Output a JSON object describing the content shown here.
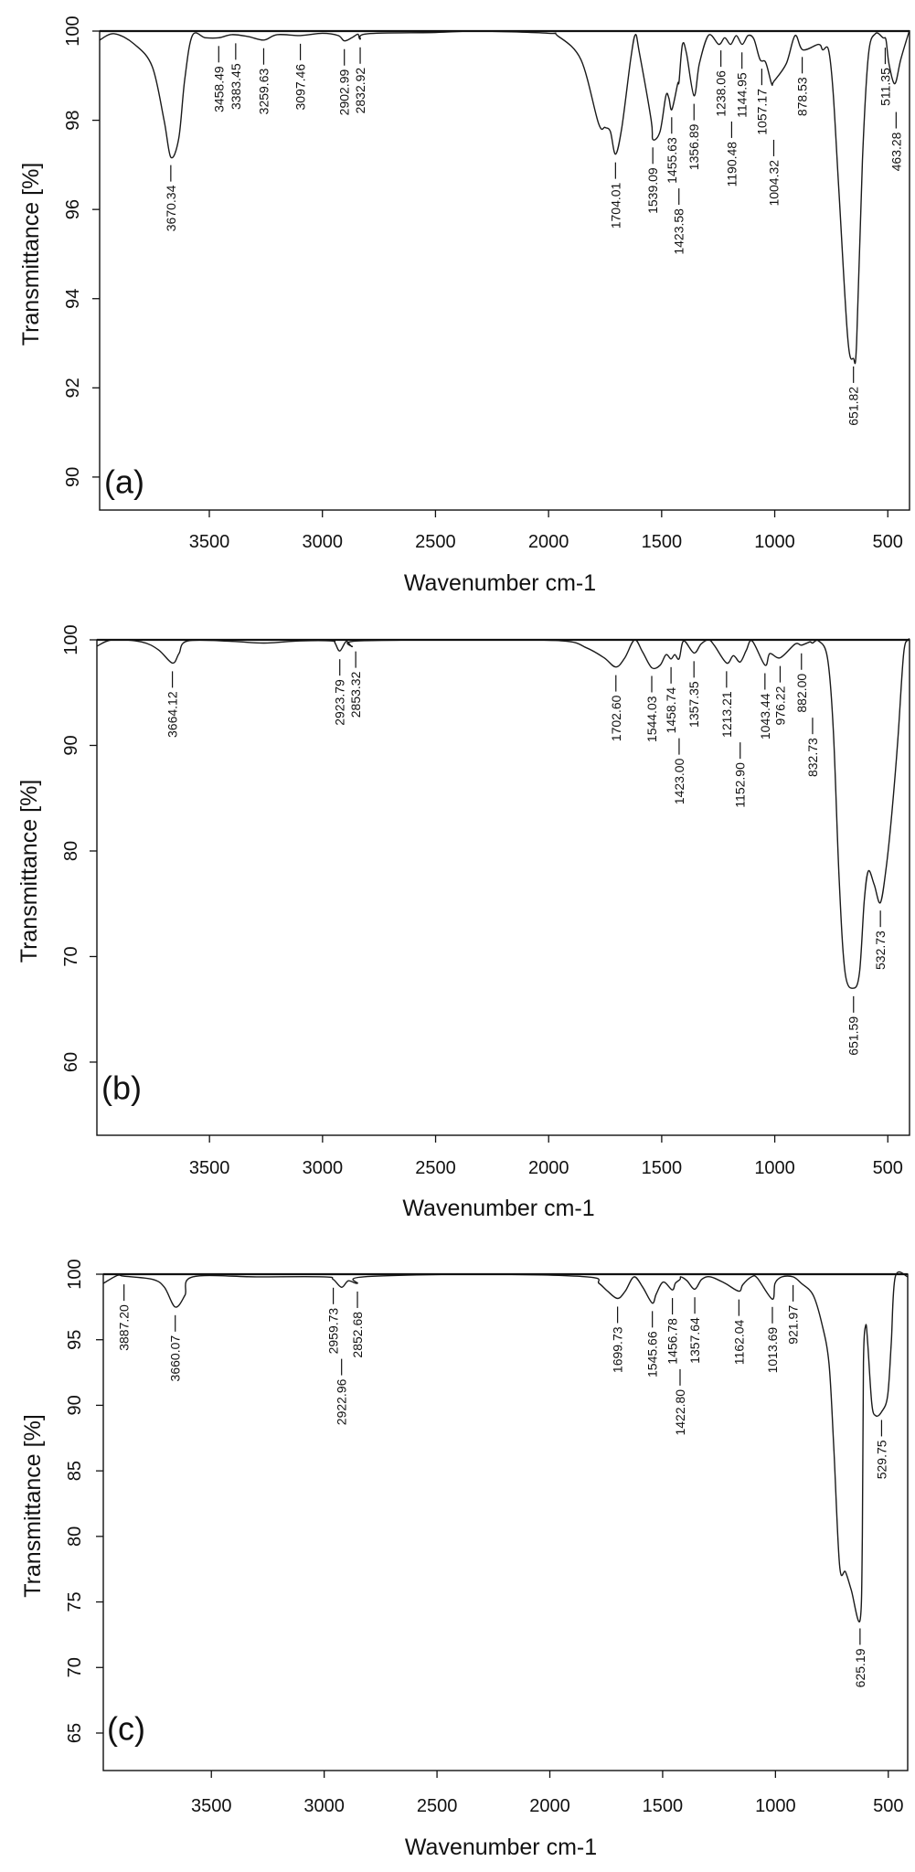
{
  "chart_data": [
    {
      "type": "line",
      "panel_label": "(a)",
      "xlabel": "Wavenumber cm-1",
      "ylabel": "Transmittance [%]",
      "xlim": [
        3985,
        404
      ],
      "ylim": [
        89.26,
        100
      ],
      "xticks": [
        3500,
        3000,
        2500,
        2000,
        1500,
        1000,
        500
      ],
      "yticks": [
        90,
        92,
        94,
        96,
        98,
        100
      ],
      "line_color": "#1a1a1a",
      "series": [
        {
          "points": [
            [
              3985,
              99.8
            ],
            [
              3920,
              99.94
            ],
            [
              3830,
              99.7
            ],
            [
              3752,
              99.2
            ],
            [
              3700,
              98.0
            ],
            [
              3670,
              97.17
            ],
            [
              3635,
              97.6
            ],
            [
              3609,
              98.9
            ],
            [
              3575,
              99.9
            ],
            [
              3518,
              99.85
            ],
            [
              3458,
              99.85
            ],
            [
              3400,
              99.92
            ],
            [
              3330,
              99.88
            ],
            [
              3259,
              99.8
            ],
            [
              3200,
              99.92
            ],
            [
              3097,
              99.9
            ],
            [
              3000,
              99.95
            ],
            [
              2930,
              99.9
            ],
            [
              2903,
              99.78
            ],
            [
              2870,
              99.85
            ],
            [
              2843,
              99.93
            ],
            [
              2833,
              99.82
            ],
            [
              2800,
              99.94
            ],
            [
              2500,
              99.97
            ],
            [
              2300,
              100
            ],
            [
              2000,
              99.95
            ],
            [
              1961,
              99.9
            ],
            [
              1857,
              99.36
            ],
            [
              1779,
              97.93
            ],
            [
              1750,
              97.84
            ],
            [
              1727,
              97.75
            ],
            [
              1704,
              97.24
            ],
            [
              1676,
              97.84
            ],
            [
              1637,
              99.36
            ],
            [
              1616,
              99.92
            ],
            [
              1598,
              99.5
            ],
            [
              1546,
              98.0
            ],
            [
              1539,
              97.57
            ],
            [
              1507,
              97.75
            ],
            [
              1481,
              98.55
            ],
            [
              1468,
              98.5
            ],
            [
              1455,
              98.24
            ],
            [
              1429,
              98.82
            ],
            [
              1423,
              98.87
            ],
            [
              1408,
              99.7
            ],
            [
              1390,
              99.5
            ],
            [
              1357,
              98.55
            ],
            [
              1333,
              99.27
            ],
            [
              1292,
              99.91
            ],
            [
              1247,
              99.7
            ],
            [
              1221,
              99.85
            ],
            [
              1195,
              99.7
            ],
            [
              1170,
              99.9
            ],
            [
              1144,
              99.7
            ],
            [
              1118,
              99.9
            ],
            [
              1092,
              99.82
            ],
            [
              1065,
              99.36
            ],
            [
              1040,
              99.3
            ],
            [
              1014,
              98.82
            ],
            [
              1004,
              98.87
            ],
            [
              949,
              99.27
            ],
            [
              910,
              99.9
            ],
            [
              876,
              99.58
            ],
            [
              806,
              99.7
            ],
            [
              788,
              99.58
            ],
            [
              762,
              99.58
            ],
            [
              742,
              98.64
            ],
            [
              716,
              96.4
            ],
            [
              677,
              93.1
            ],
            [
              652,
              92.66
            ],
            [
              638,
              93.0
            ],
            [
              612,
              97.1
            ],
            [
              586,
              99.45
            ],
            [
              555,
              99.94
            ],
            [
              521,
              99.85
            ],
            [
              508,
              99.8
            ],
            [
              495,
              99.27
            ],
            [
              469,
              98.82
            ],
            [
              443,
              99.36
            ],
            [
              409,
              99.94
            ],
            [
              404,
              100
            ]
          ]
        }
      ],
      "peaks": [
        "3670.34",
        "3458.49",
        "3383.45",
        "3259.63",
        "3097.46",
        "2902.99",
        "2832.92",
        "1704.01",
        "1539.09",
        "1455.63",
        "1423.58",
        "1356.89",
        "1238.06",
        "1190.48",
        "1144.95",
        "1057.17",
        "1004.32",
        "878.53",
        "651.82",
        "511.35",
        "463.28"
      ]
    },
    {
      "type": "line",
      "panel_label": "(b)",
      "xlabel": "Wavenumber cm-1",
      "ylabel": "Transmittance [%]",
      "xlim": [
        3998,
        404
      ],
      "ylim": [
        53.07,
        100
      ],
      "xticks": [
        3500,
        3000,
        2500,
        2000,
        1500,
        1000,
        500
      ],
      "yticks": [
        60,
        70,
        80,
        90,
        100
      ],
      "line_color": "#1a1a1a",
      "series": [
        {
          "points": [
            [
              3998,
              99.4
            ],
            [
              3930,
              100
            ],
            [
              3800,
              99.8
            ],
            [
              3726,
              99.06
            ],
            [
              3664,
              97.8
            ],
            [
              3635,
              98.7
            ],
            [
              3596,
              99.9
            ],
            [
              3400,
              99.85
            ],
            [
              3258,
              99.7
            ],
            [
              3100,
              99.9
            ],
            [
              2960,
              99.9
            ],
            [
              2945,
              99.7
            ],
            [
              2924,
              98.94
            ],
            [
              2895,
              99.85
            ],
            [
              2869,
              99.36
            ],
            [
              2843,
              99.9
            ],
            [
              2300,
              100
            ],
            [
              1937,
              99.9
            ],
            [
              1833,
              99.25
            ],
            [
              1755,
              98.3
            ],
            [
              1703,
              97.43
            ],
            [
              1663,
              98.3
            ],
            [
              1620,
              100
            ],
            [
              1585,
              98.87
            ],
            [
              1544,
              97.36
            ],
            [
              1507,
              97.6
            ],
            [
              1481,
              98.6
            ],
            [
              1459,
              98.19
            ],
            [
              1442,
              98.6
            ],
            [
              1423,
              98.2
            ],
            [
              1403,
              99.9
            ],
            [
              1357,
              98.75
            ],
            [
              1326,
              99.6
            ],
            [
              1292,
              100
            ],
            [
              1266,
              99.43
            ],
            [
              1213,
              97.8
            ],
            [
              1183,
              98.5
            ],
            [
              1153,
              97.9
            ],
            [
              1126,
              99.0
            ],
            [
              1100,
              99.9
            ],
            [
              1043,
              97.6
            ],
            [
              1022,
              98.7
            ],
            [
              976,
              98.3
            ],
            [
              910,
              99.6
            ],
            [
              882,
              99.5
            ],
            [
              845,
              99.8
            ],
            [
              833,
              99.7
            ],
            [
              806,
              99.9
            ],
            [
              767,
              98.3
            ],
            [
              741,
              91.5
            ],
            [
              715,
              77.2
            ],
            [
              689,
              68.5
            ],
            [
              652,
              67.0
            ],
            [
              625,
              68.5
            ],
            [
              604,
              75.3
            ],
            [
              586,
              78.1
            ],
            [
              560,
              76.8
            ],
            [
              533,
              75.1
            ],
            [
              508,
              78.3
            ],
            [
              482,
              83.6
            ],
            [
              456,
              90.4
            ],
            [
              430,
              98.7
            ],
            [
              409,
              100
            ],
            [
              404,
              100
            ]
          ]
        }
      ],
      "peaks": [
        "3664.12",
        "2923.79",
        "2853.32",
        "1702.60",
        "1544.03",
        "1458.74",
        "1423.00",
        "1357.35",
        "1213.21",
        "1152.90",
        "1043.44",
        "976.22",
        "882.00",
        "832.73",
        "651.59",
        "532.73"
      ]
    },
    {
      "type": "line",
      "panel_label": "(c)",
      "xlabel": "Wavenumber cm-1",
      "ylabel": "Transmittance [%]",
      "xlim": [
        3979,
        414
      ],
      "ylim": [
        62.14,
        100
      ],
      "xticks": [
        3500,
        3000,
        2500,
        2000,
        1500,
        1000,
        500
      ],
      "yticks": [
        65,
        70,
        75,
        80,
        85,
        90,
        95,
        100
      ],
      "line_color": "#1a1a1a",
      "series": [
        {
          "points": [
            [
              3979,
              99.3
            ],
            [
              3917,
              99.9
            ],
            [
              3887,
              99.85
            ],
            [
              3760,
              99.6
            ],
            [
              3708,
              99.0
            ],
            [
              3660,
              97.5
            ],
            [
              3617,
              98.4
            ],
            [
              3583,
              99.8
            ],
            [
              3300,
              99.8
            ],
            [
              3000,
              99.8
            ],
            [
              2960,
              99.6
            ],
            [
              2923,
              99.0
            ],
            [
              2893,
              99.5
            ],
            [
              2853,
              99.3
            ],
            [
              2827,
              99.8
            ],
            [
              2300,
              100
            ],
            [
              1835,
              99.8
            ],
            [
              1782,
              99.3
            ],
            [
              1744,
              98.7
            ],
            [
              1700,
              98.15
            ],
            [
              1666,
              98.7
            ],
            [
              1627,
              99.8
            ],
            [
              1588,
              99.0
            ],
            [
              1546,
              97.8
            ],
            [
              1528,
              98.5
            ],
            [
              1497,
              99.4
            ],
            [
              1457,
              98.8
            ],
            [
              1444,
              99.3
            ],
            [
              1423,
              99.6
            ],
            [
              1419,
              99.8
            ],
            [
              1392,
              99.5
            ],
            [
              1358,
              98.86
            ],
            [
              1327,
              99.6
            ],
            [
              1288,
              99.8
            ],
            [
              1223,
              99.3
            ],
            [
              1162,
              98.7
            ],
            [
              1145,
              99.2
            ],
            [
              1106,
              99.8
            ],
            [
              1080,
              99.7
            ],
            [
              1014,
              98.1
            ],
            [
              1002,
              99.3
            ],
            [
              971,
              99.8
            ],
            [
              922,
              99.8
            ],
            [
              885,
              99.3
            ],
            [
              833,
              98.4
            ],
            [
              794,
              96.2
            ],
            [
              763,
              93.2
            ],
            [
              742,
              87.0
            ],
            [
              716,
              77.8
            ],
            [
              690,
              77.3
            ],
            [
              664,
              75.9
            ],
            [
              625,
              73.6
            ],
            [
              615,
              80.0
            ],
            [
              610,
              93.2
            ],
            [
              600,
              96.1
            ],
            [
              591,
              94.7
            ],
            [
              573,
              90.1
            ],
            [
              555,
              89.2
            ],
            [
              530,
              89.5
            ],
            [
              503,
              90.7
            ],
            [
              487,
              94.7
            ],
            [
              469,
              99.8
            ],
            [
              414,
              99.8
            ]
          ]
        }
      ],
      "peaks": [
        "3887.20",
        "3660.07",
        "2959.73",
        "2922.96",
        "2852.68",
        "1699.73",
        "1545.66",
        "1456.78",
        "1422.80",
        "1357.64",
        "1162.04",
        "1013.69",
        "921.97",
        "625.19",
        "529.75"
      ]
    }
  ]
}
